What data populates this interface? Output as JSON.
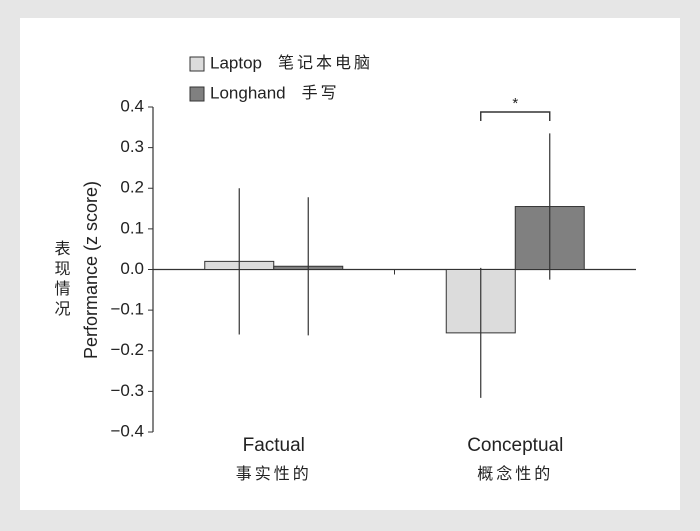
{
  "chart_data": {
    "type": "bar",
    "y_label": "Performance (z score)",
    "y_label_zh": "表现情况",
    "categories": [
      "Factual",
      "Conceptual"
    ],
    "categories_zh": [
      "事实性的",
      "概念性的"
    ],
    "series": [
      {
        "name": "Laptop",
        "name_zh": "笔记本电脑",
        "color": "#dcdcdc",
        "values": [
          0.02,
          -0.156
        ],
        "errors": [
          0.18,
          0.16
        ]
      },
      {
        "name": "Longhand",
        "name_zh": "手写",
        "color": "#808080",
        "values": [
          0.008,
          0.155
        ],
        "errors": [
          0.17,
          0.18
        ]
      }
    ],
    "annotation": "*",
    "ylim": [
      -0.4,
      0.4
    ],
    "yticks": [
      {
        "value": -0.4,
        "label": "−0.4"
      },
      {
        "value": -0.3,
        "label": "−0.3"
      },
      {
        "value": -0.2,
        "label": "−0.2"
      },
      {
        "value": -0.1,
        "label": "−0.1"
      },
      {
        "value": 0,
        "label": "0.0"
      },
      0.1,
      0.2,
      0.3,
      0.4
    ]
  }
}
